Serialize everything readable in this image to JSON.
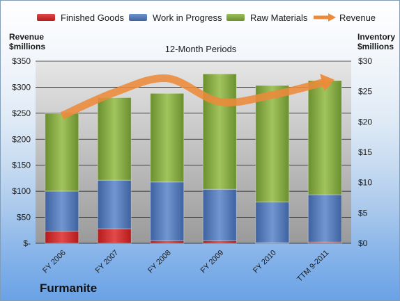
{
  "chart_data": {
    "type": "bar",
    "title": "12-Month Periods",
    "company": "Furmanite",
    "categories": [
      "FY 2006",
      "FY 2007",
      "FY 2008",
      "FY 2009",
      "FY 2010",
      "TTM 9-2011"
    ],
    "stacked": true,
    "series": [
      {
        "name": "Finished Goods",
        "axis": "inventory",
        "color": "#cc2222",
        "values": [
          2.0,
          2.4,
          0.4,
          0.4,
          0.1,
          0.2
        ]
      },
      {
        "name": "Work in Progress",
        "axis": "inventory",
        "color": "#4f74b0",
        "values": [
          6.6,
          8.0,
          9.7,
          8.5,
          6.7,
          7.8
        ]
      },
      {
        "name": "Raw Materials",
        "axis": "inventory",
        "color": "#7fa23c",
        "values": [
          12.8,
          13.6,
          14.6,
          19.0,
          19.2,
          18.8
        ]
      }
    ],
    "line_series": {
      "name": "Revenue",
      "axis": "revenue",
      "color": "#ec8a3a",
      "values": [
        245,
        290,
        317,
        272,
        285,
        310
      ]
    },
    "left_axis": {
      "label": "Revenue\n$millions",
      "ylim": [
        0,
        350
      ],
      "ticks": [
        "$-",
        "$50",
        "$100",
        "$150",
        "$200",
        "$250",
        "$300",
        "$350"
      ]
    },
    "right_axis": {
      "label": "Inventory\n$millions",
      "ylim": [
        0,
        30
      ],
      "ticks": [
        "$0",
        "$5",
        "$10",
        "$15",
        "$20",
        "$25",
        "$30"
      ]
    },
    "grid": true,
    "legend_position": "top"
  },
  "legend": {
    "finished_goods": "Finished Goods",
    "work_in_progress": "Work in Progress",
    "raw_materials": "Raw Materials",
    "revenue": "Revenue"
  }
}
